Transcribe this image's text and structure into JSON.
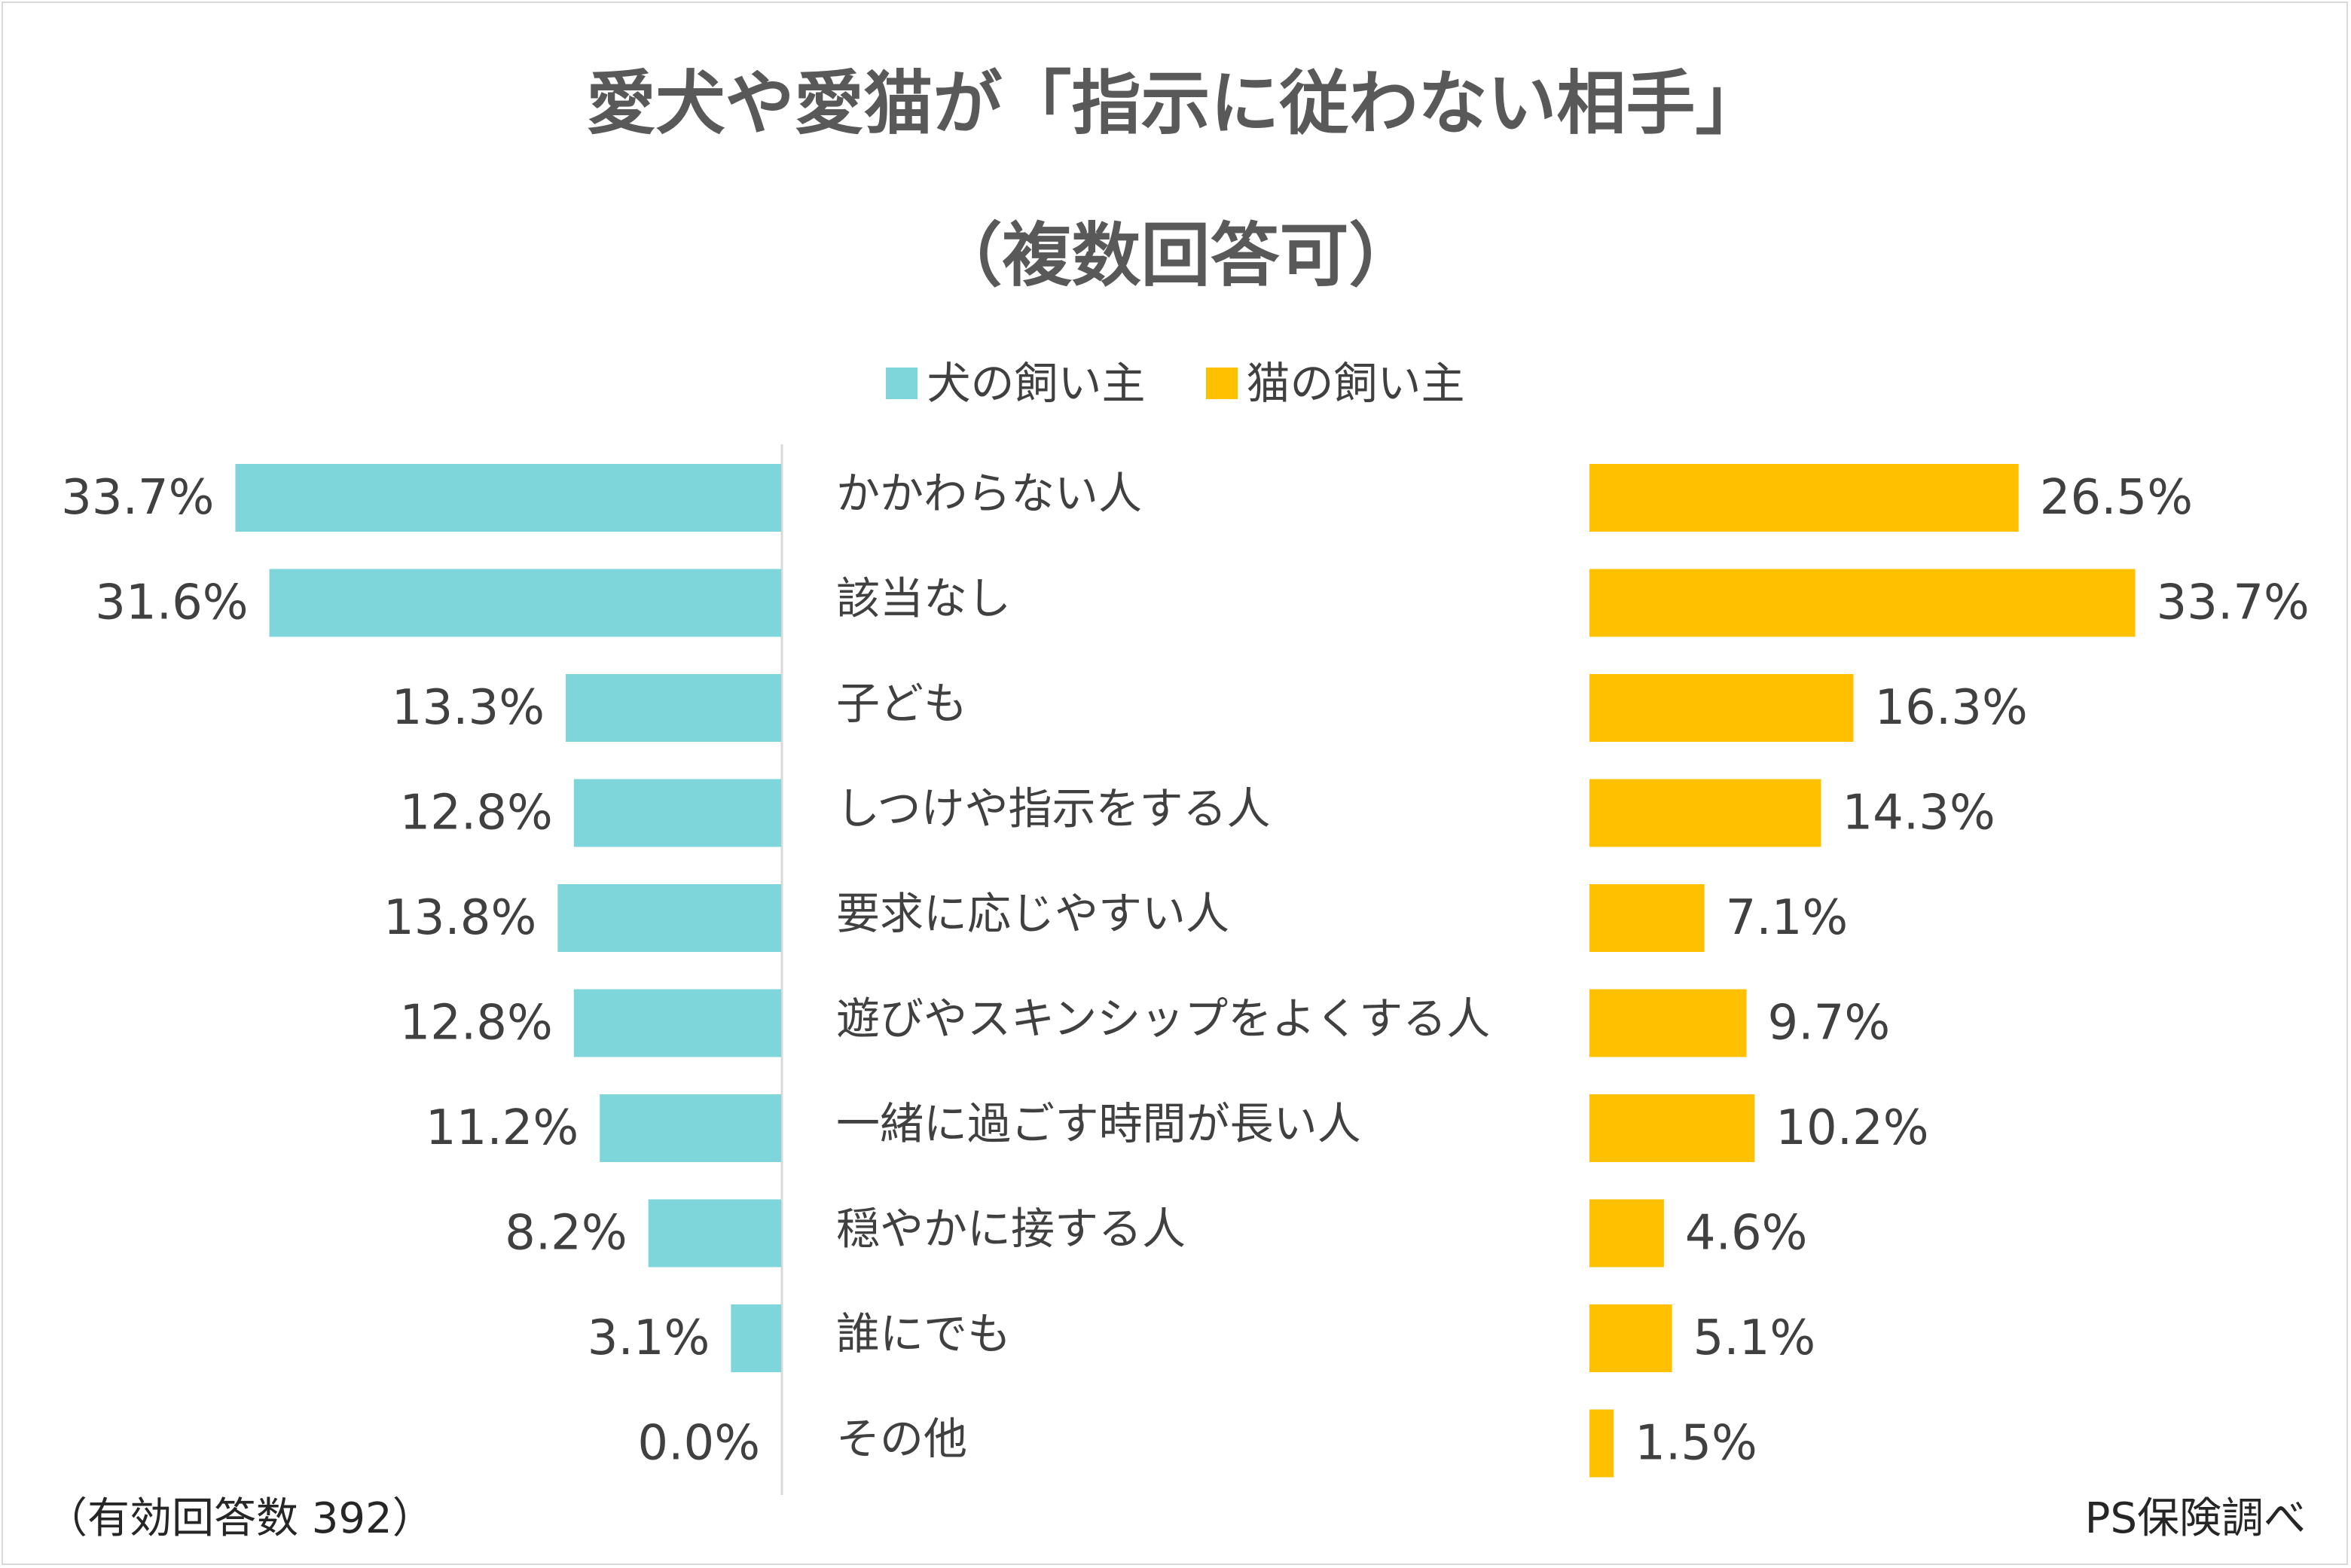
{
  "chart_data": {
    "type": "bar",
    "title_line1": "愛犬や愛猫が「指示に従わない相手」",
    "title_line2": "（複数回答可）",
    "categories": [
      "かかわらない人",
      "該当なし",
      "子ども",
      "しつけや指示をする人",
      "要求に応じやすい人",
      "遊びやスキンシップをよくする人",
      "一緒に過ごす時間が長い人",
      "穏やかに接する人",
      "誰にでも",
      "その他"
    ],
    "series": [
      {
        "name": "犬の飼い主",
        "color": "#7fd6da",
        "values": [
          33.7,
          31.6,
          13.3,
          12.8,
          13.8,
          12.8,
          11.2,
          8.2,
          3.1,
          0.0
        ],
        "labels": [
          "33.7%",
          "31.6%",
          "13.3%",
          "12.8%",
          "13.8%",
          "12.8%",
          "11.2%",
          "8.2%",
          "3.1%",
          "0.0%"
        ]
      },
      {
        "name": "猫の飼い主",
        "color": "#ffc000",
        "values": [
          26.5,
          33.7,
          16.3,
          14.3,
          7.1,
          9.7,
          10.2,
          4.6,
          5.1,
          1.5
        ],
        "labels": [
          "26.5%",
          "33.7%",
          "16.3%",
          "14.3%",
          "7.1%",
          "9.7%",
          "10.2%",
          "4.6%",
          "5.1%",
          "1.5%"
        ]
      }
    ],
    "xlim": [
      0,
      33.7
    ],
    "legend": "top-center",
    "grid": false
  },
  "footer": {
    "sample": "（有効回答数 392）",
    "source": "PS保険調べ"
  }
}
